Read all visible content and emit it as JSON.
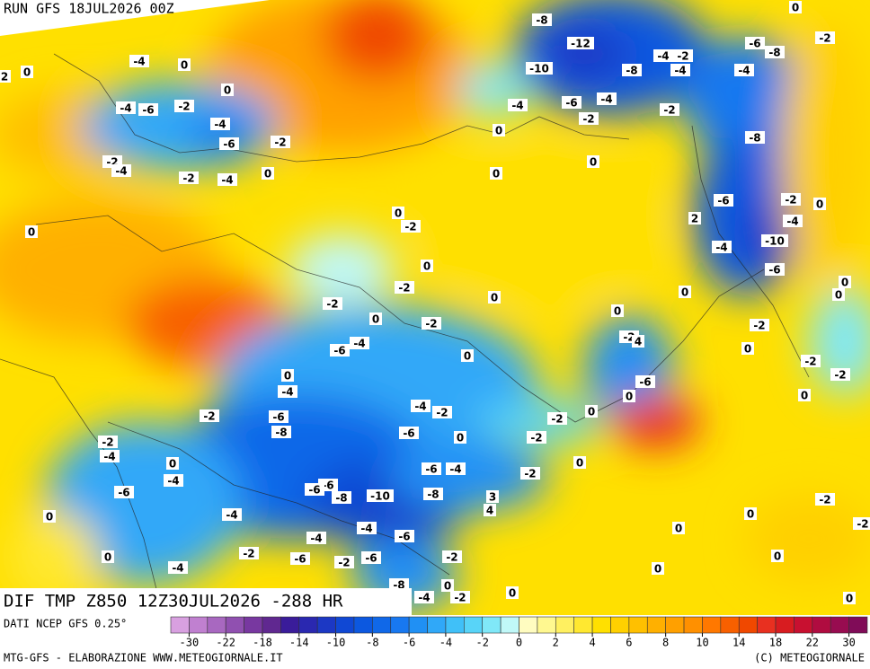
{
  "header": {
    "run": "RUN GFS 18JUL2026 00Z"
  },
  "title": "DIF TMP Z850 12Z30JUL2026 -288 HR",
  "source": "DATI NCEP GFS 0.25°",
  "footer": {
    "left": "MTG-GFS - ELABORAZIONE WWW.METEOGIORNALE.IT",
    "right": "(C) METEOGIORNALE"
  },
  "colorbar": {
    "colors": [
      "#d8a0e0",
      "#c080d0",
      "#a868c0",
      "#9050b0",
      "#7838a0",
      "#602890",
      "#3a1c9a",
      "#2a28b0",
      "#1c38c4",
      "#1048d4",
      "#0c58e0",
      "#1068e8",
      "#1878f0",
      "#2090f4",
      "#30a8f8",
      "#40c0f8",
      "#58d4f8",
      "#80e8f8",
      "#c0f8f8",
      "#fffcc0",
      "#fff890",
      "#fff060",
      "#ffe830",
      "#ffe000",
      "#ffd000",
      "#ffc000",
      "#ffb000",
      "#ffa000",
      "#ff9000",
      "#ff7800",
      "#f86000",
      "#f04800",
      "#e83020",
      "#d81c20",
      "#c81030",
      "#b00c40",
      "#980c50",
      "#800c58"
    ],
    "ticks": [
      -30,
      -22,
      -18,
      -14,
      -10,
      -8,
      -6,
      -4,
      -2,
      0,
      2,
      4,
      6,
      8,
      10,
      14,
      18,
      22,
      30
    ]
  },
  "map": {
    "contour_labels": [
      -8,
      -12,
      -10,
      -8,
      -4,
      -2,
      -4,
      -6,
      -8,
      -2,
      -4,
      0,
      -4,
      0,
      2,
      0,
      0,
      -4,
      -6,
      -2,
      -4,
      -6,
      -2,
      -2,
      -4,
      -2,
      -4,
      0,
      -4,
      -6,
      -4,
      -2,
      -2,
      0,
      0,
      0,
      -8,
      -6,
      -2,
      -4,
      0,
      2,
      -4,
      -10,
      -6,
      0,
      -2,
      0,
      0,
      -2,
      0,
      0,
      0,
      0,
      -2,
      0,
      -2,
      0,
      -2,
      -2,
      4,
      -6,
      -4,
      0,
      0,
      -2,
      -2,
      0,
      -4,
      -6,
      0,
      0,
      -2,
      -6,
      -8,
      -4,
      -2,
      0,
      -2,
      -6,
      0,
      -2,
      -2,
      -4,
      0,
      -4,
      -6,
      -4,
      -2,
      0,
      -6,
      -6,
      -6,
      -8,
      -10,
      -8,
      3,
      4,
      -2,
      0,
      -4,
      0,
      0,
      -4,
      -6,
      -4,
      -2,
      -6,
      -2,
      -6,
      -2,
      0,
      -4,
      0,
      0,
      -8,
      0,
      -4,
      -2,
      0,
      0,
      -2
    ]
  }
}
